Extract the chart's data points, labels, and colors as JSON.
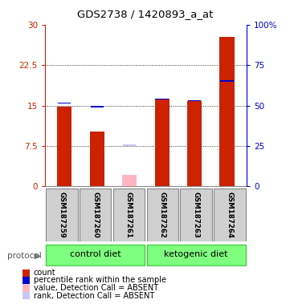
{
  "title": "GDS2738 / 1420893_a_at",
  "samples": [
    "GSM187259",
    "GSM187260",
    "GSM187261",
    "GSM187262",
    "GSM187263",
    "GSM187264"
  ],
  "red_values": [
    14.8,
    10.2,
    null,
    16.3,
    15.8,
    27.8
  ],
  "blue_values_pct": [
    51.5,
    49.3,
    null,
    54.0,
    53.0,
    65.0
  ],
  "pink_value": [
    null,
    null,
    2.2,
    null,
    null,
    null
  ],
  "lavender_value_pct": [
    null,
    null,
    25.5,
    null,
    null,
    null
  ],
  "ylim_left": [
    0,
    30
  ],
  "ylim_right": [
    0,
    100
  ],
  "yticks_left": [
    0,
    7.5,
    15,
    22.5,
    30
  ],
  "yticks_right": [
    0,
    25,
    50,
    75,
    100
  ],
  "ytick_labels_left": [
    "0",
    "7.5",
    "15",
    "22.5",
    "30"
  ],
  "ytick_labels_right": [
    "0",
    "25",
    "50",
    "75",
    "100%"
  ],
  "left_axis_color": "#cc2200",
  "right_axis_color": "#0000cc",
  "grid_lines": [
    7.5,
    15,
    22.5
  ],
  "bar_width": 0.45,
  "blue_marker_size": 0.8,
  "sample_box_color": "#d0d0d0",
  "sample_box_edge": "#888888",
  "group1_label": "control diet",
  "group2_label": "ketogenic diet",
  "group_color": "#7FFF7F",
  "group_edge": "#44cc44",
  "legend_items": [
    {
      "color": "#cc2200",
      "label": "count"
    },
    {
      "color": "#0000cc",
      "label": "percentile rank within the sample"
    },
    {
      "color": "#ffb6c1",
      "label": "value, Detection Call = ABSENT"
    },
    {
      "color": "#c8c8f8",
      "label": "rank, Detection Call = ABSENT"
    }
  ],
  "protocol_label": "protocol",
  "protocol_arrow_color": "#888888"
}
